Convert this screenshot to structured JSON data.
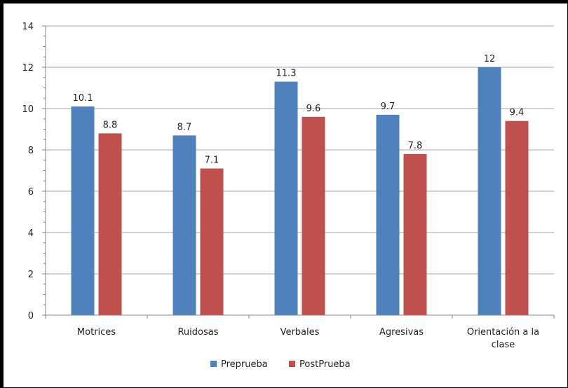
{
  "chart_data": {
    "type": "bar",
    "categories": [
      "Motrices",
      "Ruidosas",
      "Verbales",
      "Agresivas",
      "Orientación a la clase"
    ],
    "series": [
      {
        "name": "Preprueba",
        "values": [
          10.1,
          8.7,
          11.3,
          9.7,
          12
        ],
        "labels": [
          "10.1",
          "8.7",
          "11.3",
          "9.7",
          "12"
        ],
        "color": "#4f81bd"
      },
      {
        "name": "PostPrueba",
        "values": [
          8.8,
          7.1,
          9.6,
          7.8,
          9.4
        ],
        "labels": [
          "8.8",
          "7.1",
          "9.6",
          "7.8",
          "9.4"
        ],
        "color": "#c0504d"
      }
    ],
    "ylim": [
      0,
      14
    ],
    "yticks": [
      0,
      2,
      4,
      6,
      8,
      10,
      12,
      14
    ],
    "grid": true,
    "legend": "bottom"
  }
}
